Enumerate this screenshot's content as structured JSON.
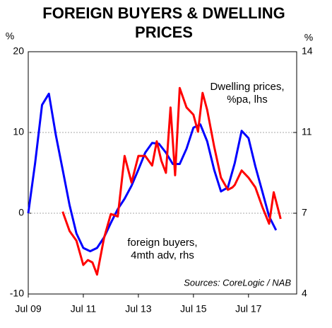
{
  "chart_data": {
    "type": "line",
    "title": [
      "FOREIGN BUYERS & DWELLING",
      "PRICES"
    ],
    "y_unit": "%",
    "y2_unit": "%",
    "source": "Sources: CoreLogic / NAB",
    "xlim": [
      "2009-07",
      "2019-04"
    ],
    "xticks": [
      {
        "value": "2009-07",
        "label": "Jul 09"
      },
      {
        "value": "2011-07",
        "label": "Jul 11"
      },
      {
        "value": "2013-07",
        "label": "Jul 13"
      },
      {
        "value": "2015-07",
        "label": "Jul 15"
      },
      {
        "value": "2017-07",
        "label": "Jul 17"
      }
    ],
    "ylim": [
      -10,
      20
    ],
    "yticks": [
      -10,
      0,
      10,
      20
    ],
    "y2lim": [
      4,
      14
    ],
    "y2ticks": [
      4,
      {
        "value": 7.333,
        "label": "7"
      },
      {
        "value": 10.667,
        "label": "11"
      },
      14
    ],
    "grid": true,
    "series": [
      {
        "name_lines": [
          "Dwelling prices,",
          "%pa, lhs"
        ],
        "color": "#0000ff",
        "axis": "y",
        "x": [
          "2009-07",
          "2009-10",
          "2010-01",
          "2010-04",
          "2010-07",
          "2010-10",
          "2011-01",
          "2011-04",
          "2011-07",
          "2011-10",
          "2012-01",
          "2012-04",
          "2012-07",
          "2012-10",
          "2013-01",
          "2013-04",
          "2013-07",
          "2013-10",
          "2014-01",
          "2014-04",
          "2014-07",
          "2014-10",
          "2015-01",
          "2015-04",
          "2015-07",
          "2015-10",
          "2016-01",
          "2016-04",
          "2016-07",
          "2016-10",
          "2017-01",
          "2017-04",
          "2017-07",
          "2017-10",
          "2018-01",
          "2018-04",
          "2018-07"
        ],
        "values": [
          0,
          6.2,
          13.4,
          14.8,
          9.7,
          5.4,
          1,
          -2.5,
          -4.3,
          -4.7,
          -4.3,
          -3,
          -1.2,
          0.5,
          1.8,
          3.4,
          5.4,
          7.5,
          8.7,
          8.6,
          7.5,
          6.1,
          6.1,
          8,
          10.6,
          11,
          8.9,
          5.4,
          2.7,
          3.2,
          6.2,
          10.2,
          9.3,
          5.8,
          2.7,
          -0.4,
          -2.1
        ]
      },
      {
        "name_lines": [
          "foreign buyers,",
          "4mth adv, rhs"
        ],
        "color": "#ff0000",
        "axis": "y2",
        "x": [
          "2010-10",
          "2011-01",
          "2011-04",
          "2011-07",
          "2011-09",
          "2011-11",
          "2012-01",
          "2012-04",
          "2012-07",
          "2012-10",
          "2013-01",
          "2013-04",
          "2013-07",
          "2013-10",
          "2014-01",
          "2014-03",
          "2014-05",
          "2014-07",
          "2014-09",
          "2014-11",
          "2015-01",
          "2015-04",
          "2015-07",
          "2015-09",
          "2015-11",
          "2016-01",
          "2016-04",
          "2016-07",
          "2016-10",
          "2016-12",
          "2017-01",
          "2017-04",
          "2017-07",
          "2017-10",
          "2018-01",
          "2018-04",
          "2018-06",
          "2018-09"
        ],
        "values": [
          7.4,
          6.6,
          6.2,
          5.2,
          5.4,
          5.3,
          4.8,
          6.3,
          7.3,
          7.2,
          9.7,
          8.6,
          9.7,
          9.7,
          9.3,
          10.3,
          9.5,
          9.0,
          11.7,
          8.9,
          12.5,
          11.7,
          11.4,
          10.7,
          12.3,
          11.6,
          10.1,
          8.8,
          8.3,
          8.4,
          8.5,
          9.1,
          8.8,
          8.4,
          7.6,
          6.9,
          8.2,
          7.1
        ]
      }
    ]
  }
}
